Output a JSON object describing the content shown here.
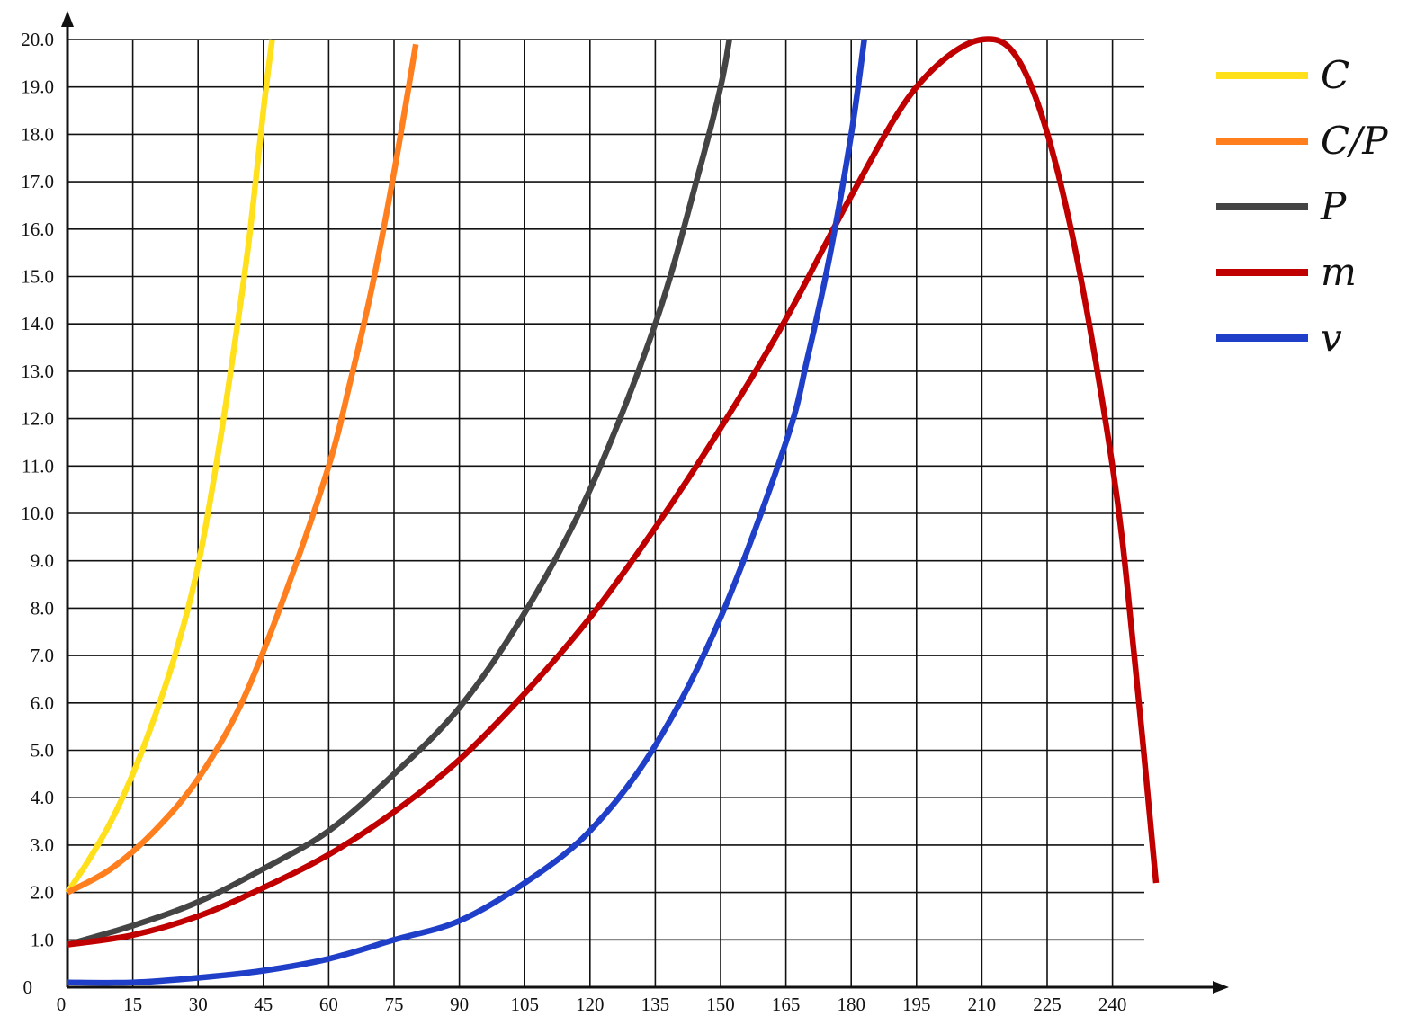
{
  "chart_data": {
    "type": "line",
    "title": "",
    "xlabel": "",
    "ylabel": "",
    "xlim": [
      0,
      255
    ],
    "ylim": [
      0,
      20
    ],
    "x_ticks": [
      0,
      15,
      30,
      45,
      60,
      75,
      90,
      105,
      120,
      135,
      150,
      165,
      180,
      195,
      210,
      225,
      240
    ],
    "y_ticks": [
      "0",
      "1.0",
      "2.0",
      "3.0",
      "4.0",
      "5.0",
      "6.0",
      "7.0",
      "8.0",
      "9.0",
      "10.0",
      "11.0",
      "12.0",
      "13.0",
      "14.0",
      "15.0",
      "16.0",
      "17.0",
      "18.0",
      "19.0",
      "20.0"
    ],
    "grid": true,
    "legend_position": "right",
    "series": [
      {
        "name": "C",
        "color": "#ffe01a",
        "x": [
          0,
          5,
          10,
          15,
          20,
          25,
          30,
          35,
          40,
          42,
          45,
          47
        ],
        "y": [
          2.0,
          2.7,
          3.5,
          4.5,
          5.7,
          7.1,
          8.9,
          11.5,
          14.6,
          16.0,
          18.5,
          20.0
        ]
      },
      {
        "name": "C/P",
        "color": "#ff7f1e",
        "x": [
          0,
          10,
          20,
          30,
          40,
          50,
          60,
          65,
          70,
          75,
          80
        ],
        "y": [
          2.0,
          2.5,
          3.3,
          4.4,
          6.0,
          8.3,
          11.0,
          12.8,
          14.8,
          17.2,
          19.9
        ]
      },
      {
        "name": "P",
        "color": "#444444",
        "x": [
          0,
          15,
          30,
          45,
          60,
          75,
          90,
          105,
          120,
          135,
          145,
          150,
          152
        ],
        "y": [
          0.9,
          1.3,
          1.8,
          2.5,
          3.3,
          4.5,
          5.9,
          7.9,
          10.5,
          14.0,
          17.2,
          19.0,
          20.0
        ]
      },
      {
        "name": "m",
        "color": "#c00000",
        "x": [
          0,
          15,
          30,
          45,
          60,
          75,
          90,
          105,
          120,
          135,
          150,
          165,
          180,
          195,
          210,
          220,
          230,
          240,
          245,
          250
        ],
        "y": [
          0.9,
          1.1,
          1.5,
          2.1,
          2.8,
          3.7,
          4.8,
          6.2,
          7.8,
          9.7,
          11.8,
          14.1,
          16.7,
          19.0,
          20.0,
          19.3,
          16.2,
          11.0,
          7.0,
          2.2
        ]
      },
      {
        "name": "v",
        "color": "#1f3fc8",
        "x": [
          0,
          15,
          30,
          45,
          60,
          75,
          90,
          105,
          120,
          135,
          150,
          165,
          170,
          175,
          180,
          183
        ],
        "y": [
          0.1,
          0.1,
          0.2,
          0.35,
          0.6,
          1.0,
          1.4,
          2.2,
          3.3,
          5.1,
          7.8,
          11.5,
          13.3,
          15.4,
          18.0,
          20.0
        ]
      }
    ]
  }
}
